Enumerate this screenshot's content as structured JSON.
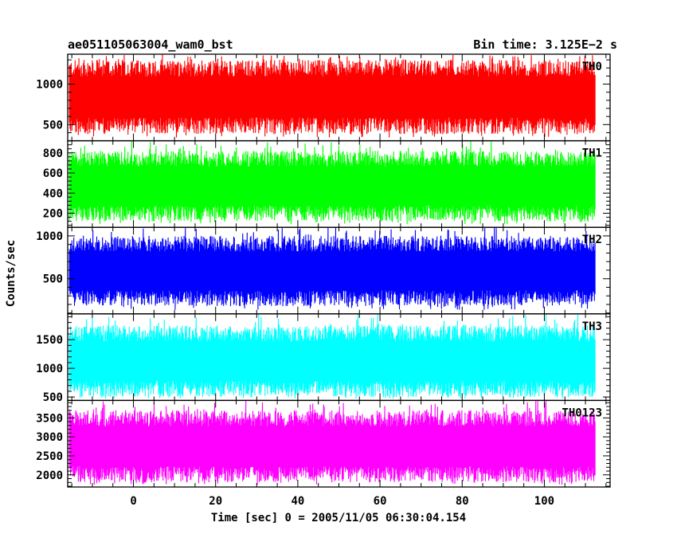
{
  "chart_data": {
    "type": "line",
    "title_left": "ae051105063004_wam0_bst",
    "title_right": "Bin time: 3.125E−2 s",
    "xlabel": "Time [sec] 0 = 2005/11/05 06:30:04.154",
    "ylabel": "Counts/sec",
    "xlim": [
      -16,
      116
    ],
    "x_ticks": [
      0,
      20,
      40,
      60,
      80,
      100
    ],
    "data_x_range": [
      -15.6,
      112.4
    ],
    "panels": [
      {
        "name": "TH0",
        "color": "#ff0000",
        "ylim": [
          300,
          1370
        ],
        "y_ticks": [
          500,
          1000
        ],
        "envelope_low": 380,
        "envelope_high": 1300,
        "spike_max": 1370
      },
      {
        "name": "TH1",
        "color": "#00ff00",
        "ylim": [
          60,
          920
        ],
        "y_ticks": [
          200,
          400,
          600,
          800
        ],
        "envelope_low": 120,
        "envelope_high": 820,
        "spike_max": 920
      },
      {
        "name": "TH2",
        "color": "#0000ff",
        "ylim": [
          90,
          1100
        ],
        "y_ticks": [
          500,
          1000
        ],
        "envelope_low": 180,
        "envelope_high": 1000,
        "spike_max": 1100
      },
      {
        "name": "TH3",
        "color": "#00ffff",
        "ylim": [
          440,
          1950
        ],
        "y_ticks": [
          500,
          1000,
          1500
        ],
        "envelope_low": 500,
        "envelope_high": 1750,
        "spike_max": 1950
      },
      {
        "name": "TH0123",
        "color": "#ff00ff",
        "ylim": [
          1680,
          3960
        ],
        "y_ticks": [
          2000,
          2500,
          3000,
          3500
        ],
        "envelope_low": 1800,
        "envelope_high": 3700,
        "spike_max": 3960
      }
    ]
  }
}
